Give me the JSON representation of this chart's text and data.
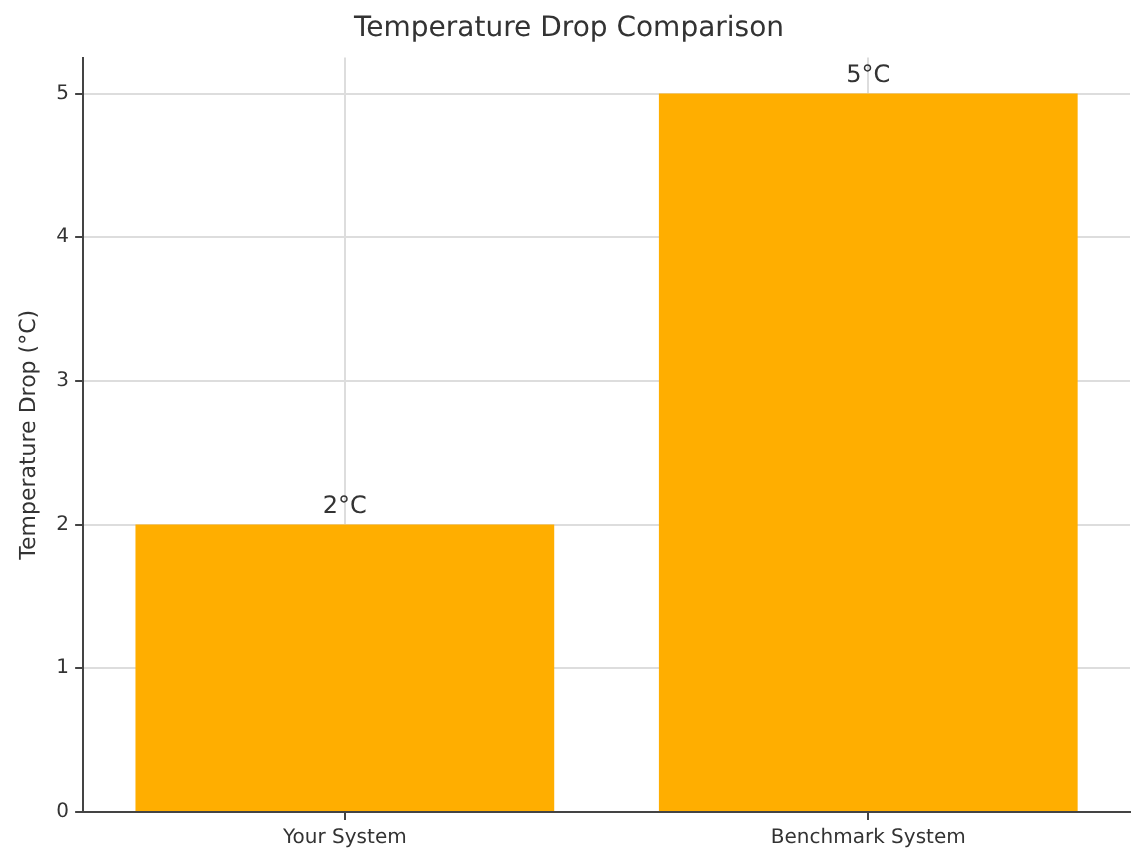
{
  "chart_data": {
    "type": "bar",
    "title": "Temperature Drop Comparison",
    "ylabel": "Temperature Drop (°C)",
    "categories": [
      "Your System",
      "Benchmark System"
    ],
    "values": [
      2,
      5
    ],
    "color": "#ffae00",
    "value_labels": [
      "2°C",
      "5°C"
    ],
    "ylim": [
      0,
      5.25
    ],
    "yticks": [
      0,
      1,
      2,
      3,
      4,
      5
    ],
    "grid": true
  }
}
